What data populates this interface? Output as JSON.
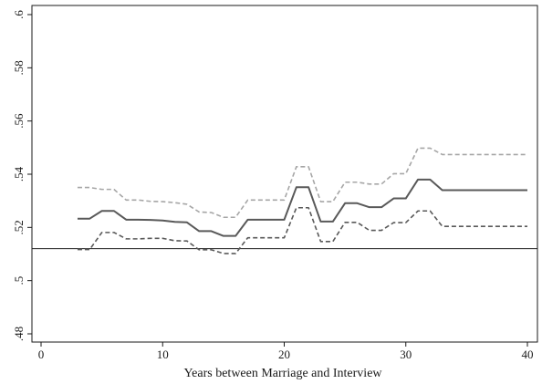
{
  "chart_data": {
    "type": "line",
    "xlabel": "Years between Marriage and Interview",
    "ylabel": "",
    "xlim": [
      0,
      40
    ],
    "ylim": [
      0.48,
      0.6
    ],
    "x_ticks": [
      {
        "value": 0,
        "label": "0"
      },
      {
        "value": 10,
        "label": "10"
      },
      {
        "value": 20,
        "label": "20"
      },
      {
        "value": 30,
        "label": "30"
      },
      {
        "value": 40,
        "label": "40"
      }
    ],
    "y_ticks": [
      {
        "value": 0.48,
        "label": ".48"
      },
      {
        "value": 0.5,
        "label": ".5"
      },
      {
        "value": 0.52,
        "label": ".52"
      },
      {
        "value": 0.54,
        "label": ".54"
      },
      {
        "value": 0.56,
        "label": ".56"
      },
      {
        "value": 0.58,
        "label": ".58"
      },
      {
        "value": 0.6,
        "label": ".6"
      }
    ],
    "grid": false,
    "reference_line": {
      "y": 0.512,
      "color": "#1a1a1a"
    },
    "x": [
      3,
      4,
      5,
      6,
      7,
      8,
      9,
      10,
      11,
      12,
      13,
      14,
      15,
      16,
      17,
      18,
      19,
      20,
      21,
      22,
      23,
      24,
      25,
      26,
      27,
      28,
      29,
      30,
      31,
      32,
      33,
      34,
      35,
      36,
      37,
      38,
      39,
      40
    ],
    "series": [
      {
        "role": "estimate",
        "style": "solid",
        "color": "#595959",
        "values": [
          0.5233,
          0.5233,
          0.5262,
          0.5262,
          0.5229,
          0.5229,
          0.5228,
          0.5226,
          0.5221,
          0.5219,
          0.5186,
          0.5186,
          0.5168,
          0.5168,
          0.5229,
          0.5229,
          0.5229,
          0.5229,
          0.5351,
          0.5351,
          0.5222,
          0.5222,
          0.5291,
          0.5291,
          0.5276,
          0.5276,
          0.5309,
          0.5309,
          0.538,
          0.538,
          0.534,
          0.534,
          0.534,
          0.534,
          0.534,
          0.534,
          0.534,
          0.534
        ]
      },
      {
        "role": "upper-bound",
        "style": "dashed",
        "color": "#a6a6a6",
        "values": [
          0.535,
          0.535,
          0.5343,
          0.5343,
          0.5303,
          0.5303,
          0.5298,
          0.5297,
          0.5293,
          0.5287,
          0.5258,
          0.5256,
          0.5238,
          0.5238,
          0.5303,
          0.5303,
          0.5303,
          0.5303,
          0.5428,
          0.5428,
          0.5297,
          0.5297,
          0.537,
          0.537,
          0.5363,
          0.5363,
          0.5402,
          0.5402,
          0.5498,
          0.5498,
          0.5474,
          0.5474,
          0.5474,
          0.5474,
          0.5474,
          0.5474,
          0.5474,
          0.5474
        ]
      },
      {
        "role": "lower-bound",
        "style": "dashed",
        "color": "#595959",
        "values": [
          0.5117,
          0.5117,
          0.5181,
          0.5181,
          0.5157,
          0.5157,
          0.5159,
          0.5159,
          0.515,
          0.5149,
          0.5116,
          0.5116,
          0.5102,
          0.5102,
          0.5161,
          0.5161,
          0.5161,
          0.5161,
          0.5274,
          0.5274,
          0.5147,
          0.5147,
          0.5219,
          0.5219,
          0.5189,
          0.5189,
          0.5218,
          0.5218,
          0.5262,
          0.5262,
          0.5204,
          0.5204,
          0.5204,
          0.5204,
          0.5204,
          0.5204,
          0.5204,
          0.5204
        ]
      }
    ]
  }
}
